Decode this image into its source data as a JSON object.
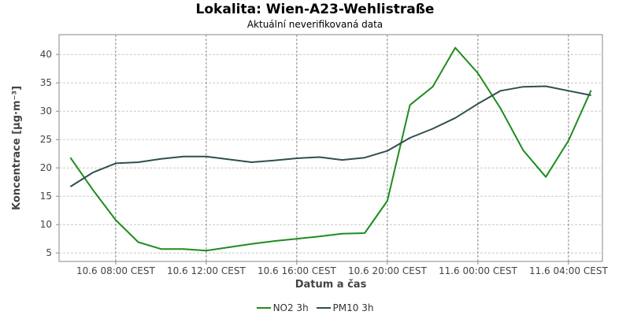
{
  "chart_data": {
    "type": "line",
    "title": "Lokalita: Wien-A23-Wehlistraße",
    "subtitle": "Aktuální neverifikovaná data",
    "xlabel": "Datum a čas",
    "ylabel": "Koncentrace [µg·m⁻³]",
    "x": [
      "10.6 06:00",
      "10.6 07:00",
      "10.6 08:00",
      "10.6 09:00",
      "10.6 10:00",
      "10.6 11:00",
      "10.6 12:00",
      "10.6 13:00",
      "10.6 14:00",
      "10.6 15:00",
      "10.6 16:00",
      "10.6 17:00",
      "10.6 18:00",
      "10.6 19:00",
      "10.6 20:00",
      "10.6 21:00",
      "10.6 22:00",
      "10.6 23:00",
      "11.6 00:00",
      "11.6 01:00",
      "11.6 02:00",
      "11.6 03:00",
      "11.6 04:00",
      "11.6 05:00"
    ],
    "x_tick_labels": [
      "10.6 08:00 CEST",
      "10.6 12:00 CEST",
      "10.6 16:00 CEST",
      "10.6 20:00 CEST",
      "11.6 00:00 CEST",
      "11.6 04:00 CEST"
    ],
    "y_ticks": [
      5,
      10,
      15,
      20,
      25,
      30,
      35,
      40
    ],
    "ylim": [
      3.5,
      43.5
    ],
    "grid": true,
    "legend_position": "bottom",
    "series": [
      {
        "name": "NO2 3h",
        "color": "#1e8c1e",
        "values": [
          21.8,
          16.1,
          10.8,
          6.9,
          5.7,
          5.7,
          5.4,
          6.0,
          6.6,
          7.1,
          7.5,
          7.9,
          8.4,
          8.5,
          14.2,
          31.1,
          34.3,
          41.2,
          36.7,
          30.5,
          23.1,
          18.4,
          24.8,
          33.7
        ]
      },
      {
        "name": "PM10 3h",
        "color": "#2f4f4f",
        "values": [
          16.7,
          19.2,
          20.8,
          21.0,
          21.6,
          22.0,
          22.0,
          21.5,
          21.0,
          21.3,
          21.7,
          21.9,
          21.4,
          21.8,
          23.0,
          25.3,
          26.9,
          28.8,
          31.3,
          33.6,
          34.3,
          34.4,
          33.6,
          32.8
        ]
      }
    ]
  }
}
